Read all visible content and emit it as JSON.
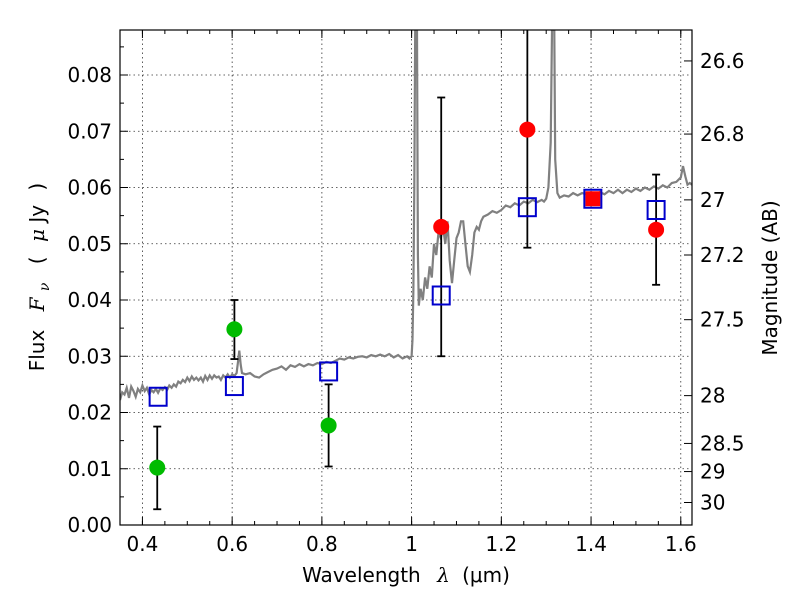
{
  "chart_data": {
    "type": "scatter",
    "title": "",
    "xlabel_main": "Wavelength",
    "xlabel_symbol": "λ",
    "xlabel_unit": "(μm)",
    "ylabel_main": "Flux",
    "ylabel_symbol": "F",
    "ylabel_subscript": "ν",
    "ylabel_unit_open": "(",
    "ylabel_unit_symbol": "μ",
    "ylabel_unit_rest": "Jy",
    "ylabel_unit_close": ")",
    "y2label": "Magnitude (AB)",
    "xlim": [
      0.35,
      1.625
    ],
    "ylim": [
      0.0,
      0.088
    ],
    "xticks": [
      0.4,
      0.6,
      0.8,
      1.0,
      1.2,
      1.4,
      1.6
    ],
    "xtick_labels": [
      "0.4",
      "0.6",
      "0.8",
      "1",
      "1.2",
      "1.4",
      "1.6"
    ],
    "yticks": [
      0.0,
      0.01,
      0.02,
      0.03,
      0.04,
      0.05,
      0.06,
      0.07,
      0.08
    ],
    "ytick_labels": [
      "0.00",
      "0.01",
      "0.02",
      "0.03",
      "0.04",
      "0.05",
      "0.06",
      "0.07",
      "0.08"
    ],
    "y2ticks": [
      {
        "label": "26.6",
        "flux": 0.0825
      },
      {
        "label": "26.8",
        "flux": 0.0695
      },
      {
        "label": "27",
        "flux": 0.0578
      },
      {
        "label": "27.2",
        "flux": 0.048
      },
      {
        "label": "27.5",
        "flux": 0.0365
      },
      {
        "label": "28",
        "flux": 0.023
      },
      {
        "label": "28.5",
        "flux": 0.0145
      },
      {
        "label": "29",
        "flux": 0.0095
      },
      {
        "label": "30",
        "flux": 0.004
      }
    ],
    "grid": true,
    "colors": {
      "spectrum": "#808080",
      "green_points": "#00bb00",
      "red_points": "#ff0000",
      "model_boxes": "#0000cc",
      "errorbars": "#000000"
    },
    "spectrum": [
      [
        0.35,
        0.0222
      ],
      [
        0.355,
        0.0236
      ],
      [
        0.36,
        0.0232
      ],
      [
        0.365,
        0.0244
      ],
      [
        0.37,
        0.0226
      ],
      [
        0.375,
        0.0246
      ],
      [
        0.38,
        0.0238
      ],
      [
        0.385,
        0.0228
      ],
      [
        0.39,
        0.0242
      ],
      [
        0.395,
        0.0236
      ],
      [
        0.4,
        0.0248
      ],
      [
        0.405,
        0.0238
      ],
      [
        0.41,
        0.0244
      ],
      [
        0.415,
        0.0232
      ],
      [
        0.42,
        0.024
      ],
      [
        0.425,
        0.0236
      ],
      [
        0.43,
        0.0242
      ],
      [
        0.435,
        0.0235
      ],
      [
        0.44,
        0.0243
      ],
      [
        0.445,
        0.024
      ],
      [
        0.45,
        0.0245
      ],
      [
        0.455,
        0.024
      ],
      [
        0.46,
        0.0248
      ],
      [
        0.465,
        0.0244
      ],
      [
        0.47,
        0.025
      ],
      [
        0.475,
        0.0246
      ],
      [
        0.48,
        0.0255
      ],
      [
        0.485,
        0.0252
      ],
      [
        0.49,
        0.0258
      ],
      [
        0.495,
        0.0254
      ],
      [
        0.5,
        0.0262
      ],
      [
        0.505,
        0.0256
      ],
      [
        0.51,
        0.0264
      ],
      [
        0.515,
        0.0258
      ],
      [
        0.52,
        0.0262
      ],
      [
        0.525,
        0.0257
      ],
      [
        0.53,
        0.0262
      ],
      [
        0.535,
        0.0255
      ],
      [
        0.54,
        0.0265
      ],
      [
        0.545,
        0.0258
      ],
      [
        0.55,
        0.0266
      ],
      [
        0.555,
        0.026
      ],
      [
        0.56,
        0.0266
      ],
      [
        0.565,
        0.0262
      ],
      [
        0.57,
        0.0264
      ],
      [
        0.575,
        0.0258
      ],
      [
        0.58,
        0.0266
      ],
      [
        0.585,
        0.0262
      ],
      [
        0.59,
        0.0268
      ],
      [
        0.595,
        0.0262
      ],
      [
        0.6,
        0.0268
      ],
      [
        0.605,
        0.0265
      ],
      [
        0.61,
        0.027
      ],
      [
        0.613,
        0.029
      ],
      [
        0.616,
        0.031
      ],
      [
        0.619,
        0.0285
      ],
      [
        0.622,
        0.027
      ],
      [
        0.63,
        0.0268
      ],
      [
        0.64,
        0.027
      ],
      [
        0.65,
        0.0264
      ],
      [
        0.66,
        0.0262
      ],
      [
        0.67,
        0.0268
      ],
      [
        0.68,
        0.0272
      ],
      [
        0.69,
        0.0276
      ],
      [
        0.7,
        0.0278
      ],
      [
        0.71,
        0.0282
      ],
      [
        0.72,
        0.0276
      ],
      [
        0.73,
        0.0284
      ],
      [
        0.74,
        0.0281
      ],
      [
        0.75,
        0.0286
      ],
      [
        0.76,
        0.0282
      ],
      [
        0.77,
        0.0286
      ],
      [
        0.78,
        0.0284
      ],
      [
        0.79,
        0.0288
      ],
      [
        0.8,
        0.0286
      ],
      [
        0.81,
        0.029
      ],
      [
        0.82,
        0.0288
      ],
      [
        0.83,
        0.0292
      ],
      [
        0.84,
        0.0296
      ],
      [
        0.85,
        0.0294
      ],
      [
        0.86,
        0.0298
      ],
      [
        0.87,
        0.0296
      ],
      [
        0.88,
        0.0299
      ],
      [
        0.89,
        0.03
      ],
      [
        0.9,
        0.0298
      ],
      [
        0.91,
        0.0302
      ],
      [
        0.92,
        0.03
      ],
      [
        0.93,
        0.0303
      ],
      [
        0.94,
        0.03
      ],
      [
        0.95,
        0.0304
      ],
      [
        0.96,
        0.0298
      ],
      [
        0.97,
        0.0302
      ],
      [
        0.98,
        0.0296
      ],
      [
        0.99,
        0.03
      ],
      [
        0.995,
        0.0296
      ],
      [
        1.0,
        0.03
      ],
      [
        1.002,
        0.033
      ],
      [
        1.004,
        0.042
      ],
      [
        1.006,
        0.06
      ],
      [
        1.008,
        0.088
      ],
      [
        1.012,
        0.088
      ],
      [
        1.014,
        0.048
      ],
      [
        1.016,
        0.039
      ],
      [
        1.02,
        0.042
      ],
      [
        1.025,
        0.04
      ],
      [
        1.03,
        0.044
      ],
      [
        1.035,
        0.042
      ],
      [
        1.04,
        0.046
      ],
      [
        1.045,
        0.044
      ],
      [
        1.05,
        0.05
      ],
      [
        1.055,
        0.048
      ],
      [
        1.06,
        0.052
      ],
      [
        1.065,
        0.051
      ],
      [
        1.07,
        0.053
      ],
      [
        1.075,
        0.05
      ],
      [
        1.08,
        0.054
      ],
      [
        1.085,
        0.047
      ],
      [
        1.09,
        0.043
      ],
      [
        1.095,
        0.047
      ],
      [
        1.1,
        0.051
      ],
      [
        1.105,
        0.052
      ],
      [
        1.11,
        0.054
      ],
      [
        1.115,
        0.054
      ],
      [
        1.12,
        0.05
      ],
      [
        1.125,
        0.046
      ],
      [
        1.13,
        0.045
      ],
      [
        1.135,
        0.048
      ],
      [
        1.14,
        0.052
      ],
      [
        1.145,
        0.053
      ],
      [
        1.15,
        0.0525
      ],
      [
        1.155,
        0.054
      ],
      [
        1.16,
        0.0548
      ],
      [
        1.17,
        0.0552
      ],
      [
        1.18,
        0.0558
      ],
      [
        1.19,
        0.0555
      ],
      [
        1.2,
        0.056
      ],
      [
        1.21,
        0.0568
      ],
      [
        1.22,
        0.0565
      ],
      [
        1.23,
        0.0572
      ],
      [
        1.24,
        0.0568
      ],
      [
        1.25,
        0.0575
      ],
      [
        1.26,
        0.0572
      ],
      [
        1.27,
        0.0578
      ],
      [
        1.28,
        0.0574
      ],
      [
        1.29,
        0.0578
      ],
      [
        1.295,
        0.0575
      ],
      [
        1.3,
        0.058
      ],
      [
        1.305,
        0.06
      ],
      [
        1.31,
        0.068
      ],
      [
        1.313,
        0.088
      ],
      [
        1.318,
        0.088
      ],
      [
        1.32,
        0.065
      ],
      [
        1.325,
        0.059
      ],
      [
        1.33,
        0.0582
      ],
      [
        1.34,
        0.0586
      ],
      [
        1.35,
        0.0584
      ],
      [
        1.36,
        0.059
      ],
      [
        1.37,
        0.0586
      ],
      [
        1.38,
        0.059
      ],
      [
        1.39,
        0.0588
      ],
      [
        1.4,
        0.0592
      ],
      [
        1.41,
        0.0588
      ],
      [
        1.42,
        0.0592
      ],
      [
        1.43,
        0.0588
      ],
      [
        1.44,
        0.0594
      ],
      [
        1.45,
        0.059
      ],
      [
        1.46,
        0.0596
      ],
      [
        1.47,
        0.059
      ],
      [
        1.48,
        0.0596
      ],
      [
        1.49,
        0.0592
      ],
      [
        1.5,
        0.0598
      ],
      [
        1.51,
        0.0594
      ],
      [
        1.52,
        0.06
      ],
      [
        1.53,
        0.0596
      ],
      [
        1.54,
        0.0602
      ],
      [
        1.55,
        0.0598
      ],
      [
        1.56,
        0.0604
      ],
      [
        1.57,
        0.06
      ],
      [
        1.58,
        0.0608
      ],
      [
        1.59,
        0.061
      ],
      [
        1.6,
        0.0618
      ],
      [
        1.605,
        0.0638
      ],
      [
        1.61,
        0.062
      ],
      [
        1.615,
        0.0605
      ],
      [
        1.62,
        0.0608
      ],
      [
        1.625,
        0.0605
      ]
    ],
    "green_points": [
      {
        "x": 0.433,
        "y": 0.0102,
        "lo": 0.0028,
        "hi": 0.0175
      },
      {
        "x": 0.605,
        "y": 0.0348,
        "lo": 0.0295,
        "hi": 0.04
      },
      {
        "x": 0.815,
        "y": 0.0177,
        "lo": 0.0104,
        "hi": 0.025
      }
    ],
    "red_points": [
      {
        "x": 1.066,
        "y": 0.053,
        "lo": 0.03,
        "hi": 0.076
      },
      {
        "x": 1.258,
        "y": 0.0703,
        "lo": 0.0493,
        "hi": 0.088
      },
      {
        "x": 1.545,
        "y": 0.0525,
        "lo": 0.0427,
        "hi": 0.0623
      }
    ],
    "red_square_points": [
      {
        "x": 1.404,
        "y": 0.058
      }
    ],
    "model_boxes": [
      {
        "x": 0.435,
        "y": 0.0228
      },
      {
        "x": 0.605,
        "y": 0.0247
      },
      {
        "x": 0.815,
        "y": 0.0273
      },
      {
        "x": 1.066,
        "y": 0.0408
      },
      {
        "x": 1.258,
        "y": 0.0565
      },
      {
        "x": 1.404,
        "y": 0.058
      },
      {
        "x": 1.545,
        "y": 0.056
      }
    ]
  }
}
